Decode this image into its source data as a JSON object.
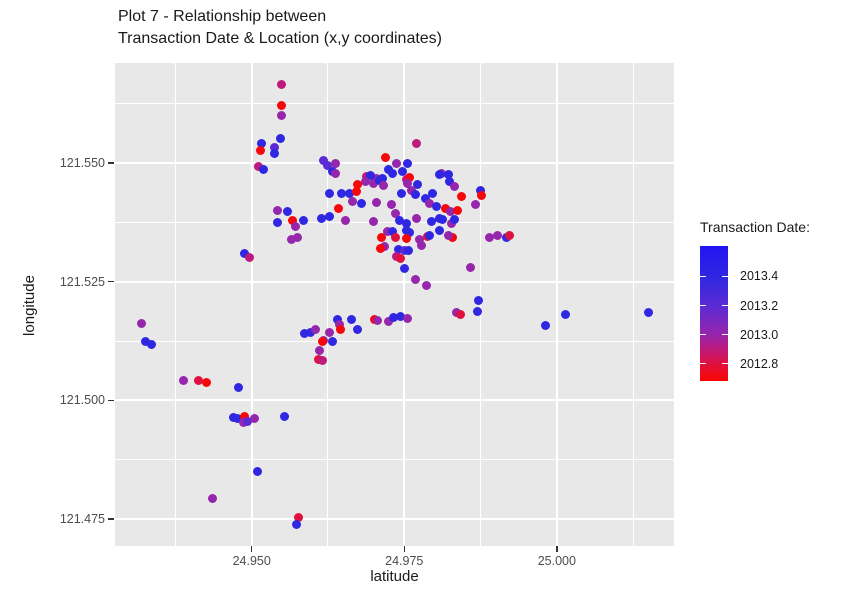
{
  "title": {
    "line1": "Plot 7 - Relationship between",
    "line2": "Transaction Date & Location (x,y coordinates)"
  },
  "axes": {
    "x": {
      "label": "latitude",
      "tick_labels": [
        "24.950",
        "24.975",
        "25.000"
      ],
      "tick_values": [
        24.95,
        24.975,
        25.0
      ],
      "minor_values": [
        24.9375,
        24.9625,
        24.9875,
        25.0125
      ],
      "domain": [
        24.9276,
        25.0192
      ]
    },
    "y": {
      "label": "longitude",
      "tick_labels": [
        "121.550",
        "121.525",
        "121.500",
        "121.475"
      ],
      "tick_values": [
        121.55,
        121.525,
        121.5,
        121.475
      ],
      "minor_values": [
        121.5625,
        121.5375,
        121.5125,
        121.4875
      ],
      "domain": [
        121.4693,
        121.5711
      ]
    }
  },
  "legend": {
    "title": "Transaction Date:",
    "tick_labels": [
      "2013.4",
      "2013.2",
      "2013.0",
      "2012.8"
    ],
    "tick_values": [
      2013.4,
      2013.2,
      2013.0,
      2012.8
    ],
    "value_range": [
      2012.68,
      2013.61
    ],
    "low_color": "#FB0500",
    "high_color": "#2214F2"
  },
  "colors": {
    "panel_bg": "#e8e8e8",
    "grid": "#ffffff",
    "title_text": "#1a1a1a",
    "tick_text": "#4d4d4d",
    "gradient_stops": [
      [
        2012.68,
        "#FB0500"
      ],
      [
        2012.8,
        "#DE1140"
      ],
      [
        2012.9,
        "#BE1A7C"
      ],
      [
        2013.0,
        "#9626AC"
      ],
      [
        2013.1,
        "#7829C2"
      ],
      [
        2013.2,
        "#5A2BD4"
      ],
      [
        2013.4,
        "#2F27E2"
      ],
      [
        2013.61,
        "#2214F2"
      ]
    ]
  },
  "chart_data": {
    "type": "scatter",
    "title": "Plot 7 - Relationship between Transaction Date & Location (x,y coordinates)",
    "xlabel": "latitude",
    "ylabel": "longitude",
    "color_label": "Transaction Date:",
    "xlim": [
      24.9276,
      25.0192
    ],
    "ylim": [
      121.4693,
      121.5711
    ],
    "color_range": [
      2012.68,
      2013.61
    ],
    "grid": true,
    "legend_position": "right",
    "points": [
      [
        24.9549,
        121.5665,
        2012.9
      ],
      [
        24.9549,
        121.5621,
        2012.7
      ],
      [
        24.9549,
        121.56,
        2013.0
      ],
      [
        24.9548,
        121.5551,
        2013.4
      ],
      [
        24.9516,
        121.5542,
        2013.4
      ],
      [
        24.9515,
        121.5527,
        2012.7
      ],
      [
        24.9538,
        121.5532,
        2013.2
      ],
      [
        24.9538,
        121.552,
        2013.4
      ],
      [
        24.9511,
        121.5493,
        2012.9
      ],
      [
        24.952,
        121.5487,
        2013.4
      ],
      [
        24.9617,
        121.5506,
        2013.2
      ],
      [
        24.9624,
        121.5496,
        2013.2
      ],
      [
        24.9638,
        121.55,
        2013.0
      ],
      [
        24.9633,
        121.5483,
        2013.4
      ],
      [
        24.9638,
        121.5479,
        2013.0
      ],
      [
        24.9688,
        121.5472,
        2012.9
      ],
      [
        24.9704,
        121.5468,
        2013.0
      ],
      [
        24.9715,
        121.5468,
        2013.4
      ],
      [
        24.9724,
        121.5486,
        2013.4
      ],
      [
        24.9731,
        121.5479,
        2013.4
      ],
      [
        24.972,
        121.5511,
        2012.7
      ],
      [
        24.9738,
        121.5499,
        2013.0
      ],
      [
        24.9747,
        121.5483,
        2013.4
      ],
      [
        24.9755,
        121.55,
        2013.4
      ],
      [
        24.977,
        121.5542,
        2012.9
      ],
      [
        24.9811,
        121.5479,
        2013.0
      ],
      [
        24.9822,
        121.5475,
        2013.4
      ],
      [
        24.9754,
        121.5465,
        2012.9
      ],
      [
        24.9824,
        121.5461,
        2013.4
      ],
      [
        24.9694,
        121.5473,
        2013.4
      ],
      [
        24.9686,
        121.5461,
        2013.0
      ],
      [
        24.9673,
        121.5454,
        2012.7
      ],
      [
        24.9699,
        121.5457,
        2013.0
      ],
      [
        24.971,
        121.5463,
        2013.4
      ],
      [
        24.9716,
        121.5452,
        2013.0
      ],
      [
        24.9758,
        121.547,
        2012.7
      ],
      [
        24.9755,
        121.5457,
        2013.0
      ],
      [
        24.9771,
        121.5454,
        2013.4
      ],
      [
        24.9808,
        121.5475,
        2013.4
      ],
      [
        24.9833,
        121.545,
        2013.0
      ],
      [
        24.9844,
        121.5429,
        2012.7
      ],
      [
        24.9875,
        121.5442,
        2013.4
      ],
      [
        24.9877,
        121.5431,
        2012.7
      ],
      [
        24.9647,
        121.5436,
        2013.4
      ],
      [
        24.9661,
        121.5437,
        2013.4
      ],
      [
        24.9671,
        121.544,
        2012.7
      ],
      [
        24.9665,
        121.5419,
        2013.0
      ],
      [
        24.9642,
        121.5405,
        2012.7
      ],
      [
        24.968,
        121.5415,
        2013.4
      ],
      [
        24.9705,
        121.5416,
        2013.0
      ],
      [
        24.9746,
        121.5437,
        2013.4
      ],
      [
        24.9762,
        121.5443,
        2013.0
      ],
      [
        24.9769,
        121.5433,
        2013.4
      ],
      [
        24.9784,
        121.5426,
        2013.4
      ],
      [
        24.9797,
        121.5436,
        2013.4
      ],
      [
        24.9791,
        121.5415,
        2013.0
      ],
      [
        24.9803,
        121.5408,
        2013.4
      ],
      [
        24.9729,
        121.5412,
        2013.0
      ],
      [
        24.9736,
        121.5394,
        2013.0
      ],
      [
        24.9743,
        121.538,
        2013.4
      ],
      [
        24.9818,
        121.5405,
        2012.7
      ],
      [
        24.9825,
        121.5397,
        2013.0
      ],
      [
        24.9838,
        121.54,
        2012.7
      ],
      [
        24.9653,
        121.538,
        2013.0
      ],
      [
        24.9699,
        121.5376,
        2013.0
      ],
      [
        24.9754,
        121.5373,
        2013.4
      ],
      [
        24.977,
        121.5383,
        2013.0
      ],
      [
        24.9795,
        121.5376,
        2013.4
      ],
      [
        24.9808,
        121.5383,
        2013.4
      ],
      [
        24.9827,
        121.5372,
        2013.0
      ],
      [
        24.9813,
        121.5381,
        2013.4
      ],
      [
        24.9833,
        121.5381,
        2013.4
      ],
      [
        24.9829,
        121.5343,
        2012.7
      ],
      [
        24.9866,
        121.5412,
        2013.0
      ],
      [
        24.9889,
        121.5344,
        2013.0
      ],
      [
        24.9903,
        121.5348,
        2013.0
      ],
      [
        24.9918,
        121.5344,
        2013.4
      ],
      [
        24.9922,
        121.5347,
        2012.8
      ],
      [
        24.9713,
        121.5344,
        2012.7
      ],
      [
        24.9722,
        121.5355,
        2013.0
      ],
      [
        24.973,
        121.5355,
        2013.4
      ],
      [
        24.9735,
        121.5344,
        2012.8
      ],
      [
        24.9718,
        121.5324,
        2013.0
      ],
      [
        24.9711,
        121.532,
        2012.7
      ],
      [
        24.9754,
        121.5359,
        2013.4
      ],
      [
        24.9759,
        121.5353,
        2013.4
      ],
      [
        24.9753,
        121.5341,
        2012.7
      ],
      [
        24.9775,
        121.5338,
        2013.0
      ],
      [
        24.9788,
        121.5346,
        2012.8
      ],
      [
        24.9792,
        121.5348,
        2013.4
      ],
      [
        24.9808,
        121.5359,
        2013.4
      ],
      [
        24.9822,
        121.5348,
        2013.0
      ],
      [
        24.974,
        121.5318,
        2013.4
      ],
      [
        24.9751,
        121.5315,
        2013.2
      ],
      [
        24.9757,
        121.5316,
        2013.4
      ],
      [
        24.9738,
        121.5304,
        2012.9
      ],
      [
        24.9744,
        121.53,
        2012.8
      ],
      [
        24.9779,
        121.5327,
        2013.0
      ],
      [
        24.9751,
        121.5278,
        2013.4
      ],
      [
        24.9769,
        121.5254,
        2013.0
      ],
      [
        24.9786,
        121.5242,
        2013.0
      ],
      [
        24.9859,
        121.528,
        2013.0
      ],
      [
        24.9587,
        121.514,
        2013.4
      ],
      [
        24.9597,
        121.5143,
        2013.4
      ],
      [
        24.9604,
        121.515,
        2013.0
      ],
      [
        24.964,
        121.5171,
        2013.4
      ],
      [
        24.9644,
        121.5159,
        2013.0
      ],
      [
        24.9646,
        121.515,
        2012.7
      ],
      [
        24.9664,
        121.5171,
        2013.4
      ],
      [
        24.9673,
        121.515,
        2013.4
      ],
      [
        24.9702,
        121.5171,
        2012.7
      ],
      [
        24.9706,
        121.5168,
        2013.0
      ],
      [
        24.9724,
        121.5166,
        2013.0
      ],
      [
        24.9732,
        121.5175,
        2013.4
      ],
      [
        24.9744,
        121.5176,
        2013.4
      ],
      [
        24.9755,
        121.5173,
        2013.0
      ],
      [
        24.9871,
        121.5211,
        2013.4
      ],
      [
        24.987,
        121.5187,
        2013.4
      ],
      [
        24.9836,
        121.5185,
        2013.0
      ],
      [
        24.9842,
        121.518,
        2012.8
      ],
      [
        24.9618,
        121.5126,
        2013.0
      ],
      [
        24.9616,
        121.5124,
        2012.7
      ],
      [
        24.9633,
        121.5124,
        2013.4
      ],
      [
        24.9628,
        121.5143,
        2013.0
      ],
      [
        24.9611,
        121.5105,
        2013.0
      ],
      [
        24.9609,
        121.5087,
        2012.8
      ],
      [
        24.9616,
        121.5085,
        2012.9
      ],
      [
        24.9982,
        121.5157,
        2013.4
      ],
      [
        25.0015,
        121.5181,
        2013.4
      ],
      [
        25.015,
        121.5185,
        2013.4
      ],
      [
        24.9319,
        121.5162,
        2013.0
      ],
      [
        24.9326,
        121.5125,
        2013.4
      ],
      [
        24.9335,
        121.5118,
        2013.4
      ],
      [
        24.9388,
        121.5041,
        2013.0
      ],
      [
        24.9413,
        121.5041,
        2012.8
      ],
      [
        24.9426,
        121.5038,
        2012.7
      ],
      [
        24.9478,
        121.5027,
        2013.4
      ],
      [
        24.947,
        121.4964,
        2013.4
      ],
      [
        24.9477,
        121.4962,
        2013.4
      ],
      [
        24.9489,
        121.4966,
        2012.7
      ],
      [
        24.9486,
        121.4953,
        2013.0
      ],
      [
        24.9493,
        121.4955,
        2013.2
      ],
      [
        24.9504,
        121.4962,
        2013.0
      ],
      [
        24.9553,
        121.4966,
        2013.4
      ],
      [
        24.9509,
        121.485,
        2013.4
      ],
      [
        24.9576,
        121.4754,
        2012.8
      ],
      [
        24.9573,
        121.4738,
        2013.4
      ],
      [
        24.9436,
        121.4794,
        2013.0
      ],
      [
        24.9489,
        121.531,
        2013.4
      ],
      [
        24.9496,
        121.5301,
        2012.9
      ],
      [
        24.9543,
        121.5401,
        2013.0
      ],
      [
        24.9559,
        121.5397,
        2013.4
      ],
      [
        24.9567,
        121.538,
        2012.7
      ],
      [
        24.9585,
        121.5379,
        2013.4
      ],
      [
        24.9543,
        121.5374,
        2013.4
      ],
      [
        24.9571,
        121.5367,
        2013.0
      ],
      [
        24.9575,
        121.5344,
        2013.0
      ],
      [
        24.9566,
        121.5339,
        2013.0
      ],
      [
        24.9615,
        121.5383,
        2013.4
      ],
      [
        24.9628,
        121.5387,
        2013.4
      ],
      [
        24.9628,
        121.5436,
        2013.4
      ]
    ]
  }
}
